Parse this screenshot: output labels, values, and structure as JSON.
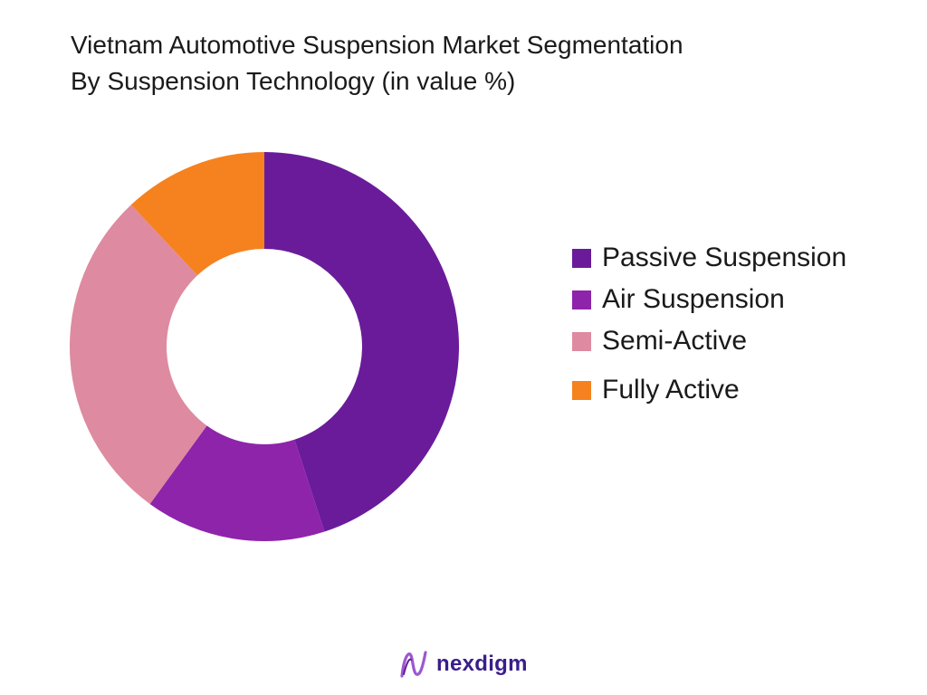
{
  "chart_data": {
    "type": "pie",
    "title_lines": [
      "Vietnam Automotive Suspension Market Segmentation",
      "By Suspension Technology (in value %)"
    ],
    "categories": [
      "Passive Suspension",
      "Air Suspension",
      "Semi-Active",
      "Fully Active"
    ],
    "values": [
      45,
      15,
      28,
      12
    ],
    "unit": "%",
    "donut": true,
    "legend_position": "right",
    "colors": [
      "#6a1b9a",
      "#8e24aa",
      "#de8aa0",
      "#f5821f"
    ]
  },
  "brand": {
    "name": "nexdigm",
    "logo_icon": "nexdigm-logo-icon",
    "colors": {
      "text": "#3a1d8c",
      "logo": "#9b59d0"
    }
  }
}
